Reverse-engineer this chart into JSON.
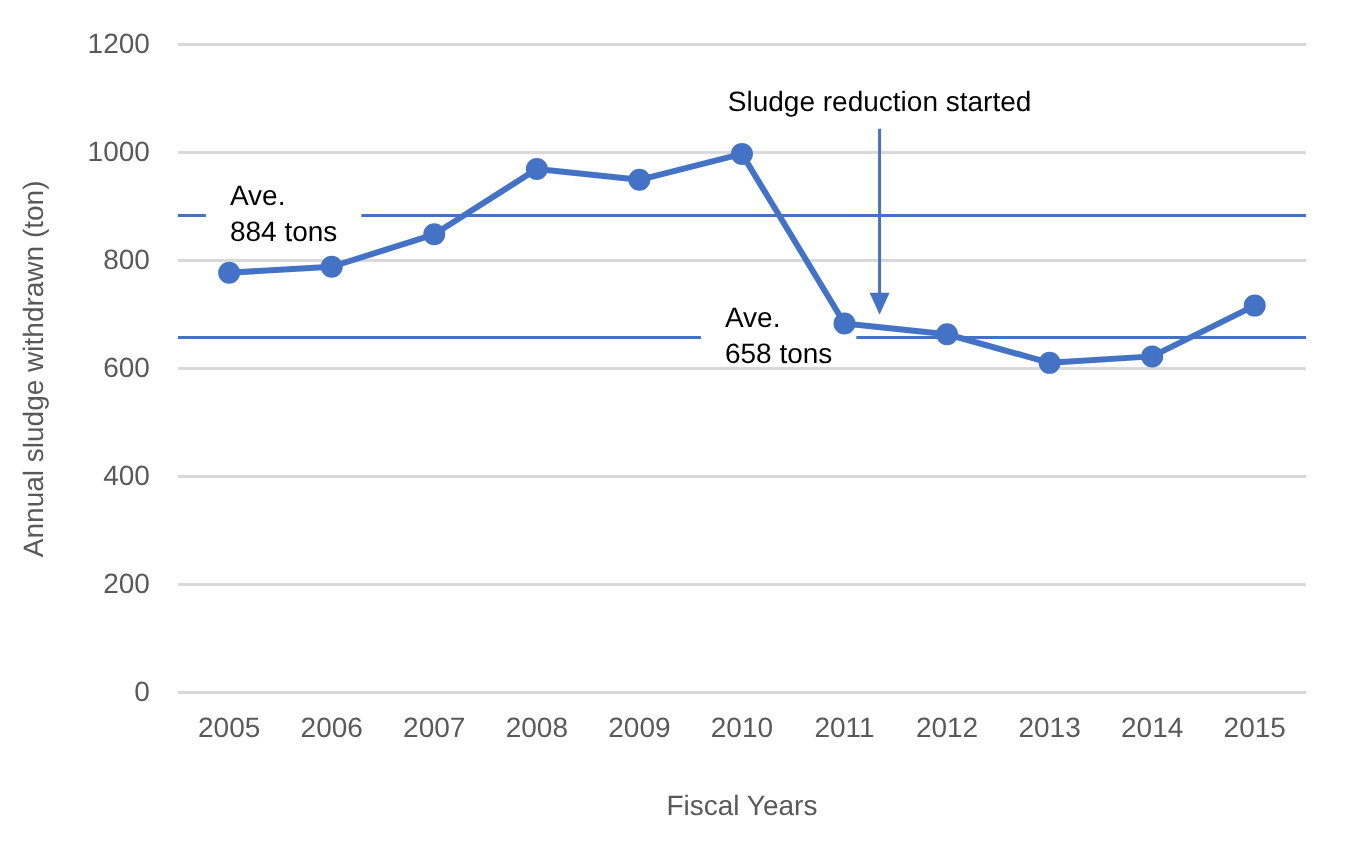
{
  "chart_data": {
    "type": "line",
    "xlabel": "Fiscal Years",
    "ylabel": "Annual sludge withdrawn (ton)",
    "categories": [
      "2005",
      "2006",
      "2007",
      "2008",
      "2009",
      "2010",
      "2011",
      "2012",
      "2013",
      "2014",
      "2015"
    ],
    "series": [
      {
        "color": "#4472c4",
        "values": [
          778,
          789,
          849,
          970,
          950,
          998,
          684,
          664,
          611,
          623,
          717
        ]
      }
    ],
    "ylim": [
      0,
      1200
    ],
    "yticks": [
      0,
      200,
      400,
      600,
      800,
      1000,
      1200
    ],
    "grid": "y",
    "legend": false,
    "marker": "circle",
    "line_style": "solid",
    "ref_lines": [
      {
        "axis": "y",
        "value": 884,
        "label": "Ave.\n884 tons",
        "color": "#4472c4"
      },
      {
        "axis": "y",
        "value": 658,
        "label": "Ave.\n658 tons",
        "color": "#4472c4"
      }
    ],
    "annotations": [
      "Sludge reduction started"
    ]
  }
}
